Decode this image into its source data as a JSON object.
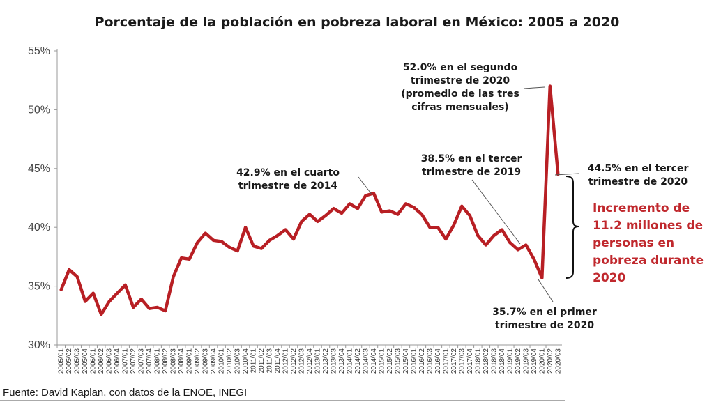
{
  "chart_data": {
    "type": "line",
    "title": "Porcentaje de la población  en pobreza laboral en México: 2005 a 2020",
    "xlabel": "",
    "ylabel": "",
    "ylim": [
      30,
      55
    ],
    "y_ticks": [
      "30%",
      "35%",
      "40%",
      "45%",
      "50%",
      "55%"
    ],
    "y_tick_values": [
      30,
      35,
      40,
      45,
      50,
      55
    ],
    "grid": false,
    "x": [
      "2005/01",
      "2005/02",
      "2005/03",
      "2005/04",
      "2006/01",
      "2006/02",
      "2006/03",
      "2006/04",
      "2007/01",
      "2007/02",
      "2007/03",
      "2007/04",
      "2008/01",
      "2008/02",
      "2008/03",
      "2008/04",
      "2009/01",
      "2009/02",
      "2009/03",
      "2009/04",
      "2010/01",
      "2010/02",
      "2010/03",
      "2010/04",
      "2011/01",
      "2011/02",
      "2011/03",
      "2011/04",
      "2012/01",
      "2012/02",
      "2012/03",
      "2012/04",
      "2013/01",
      "2013/02",
      "2013/03",
      "2013/04",
      "2014/01",
      "2014/02",
      "2014/03",
      "2014/04",
      "2015/01",
      "2015/02",
      "2015/03",
      "2015/04",
      "2016/01",
      "2016/02",
      "2016/03",
      "2016/04",
      "2017/01",
      "2017/02",
      "2017/03",
      "2017/04",
      "2018/01",
      "2018/02",
      "2018/03",
      "2018/04",
      "2019/01",
      "2019/02",
      "2019/03",
      "2019/04",
      "2020/01",
      "2020/02",
      "2020/03"
    ],
    "series": [
      {
        "color": "#b81f24",
        "values": [
          34.7,
          36.4,
          35.8,
          33.7,
          34.4,
          32.6,
          33.7,
          34.4,
          35.1,
          33.2,
          33.9,
          33.1,
          33.2,
          32.9,
          35.8,
          37.4,
          37.3,
          38.7,
          39.5,
          38.9,
          38.8,
          38.3,
          38.0,
          40.0,
          38.4,
          38.2,
          38.9,
          39.3,
          39.8,
          39.0,
          40.5,
          41.1,
          40.5,
          41.0,
          41.6,
          41.2,
          42.0,
          41.6,
          42.7,
          42.9,
          41.3,
          41.4,
          41.1,
          42.0,
          41.7,
          41.1,
          40.0,
          40.0,
          39.0,
          40.2,
          41.8,
          41.0,
          39.3,
          38.5,
          39.3,
          39.8,
          38.7,
          38.1,
          38.5,
          37.3,
          35.7,
          52.0,
          44.5
        ]
      }
    ],
    "annotations": [
      {
        "lines": [
          "52.0% en el segundo",
          "trimestre de 2020",
          "(promedio de las tres",
          "cifras mensuales)"
        ]
      },
      {
        "lines": [
          "42.9% en el cuarto",
          "trimestre de 2014"
        ]
      },
      {
        "lines": [
          "38.5% en el tercer",
          "trimestre de 2019"
        ]
      },
      {
        "lines": [
          "44.5% en el tercer",
          "trimestre de 2020"
        ]
      },
      {
        "lines": [
          "35.7% en el primer",
          "trimestre de 2020"
        ]
      }
    ],
    "increment_note": {
      "color": "#c0282d",
      "lines": [
        "Incremento de",
        "11.2 millones de",
        "personas en",
        "pobreza durante",
        "2020"
      ]
    },
    "source": "Fuente: David Kaplan, con datos de la ENOE, INEGI"
  }
}
